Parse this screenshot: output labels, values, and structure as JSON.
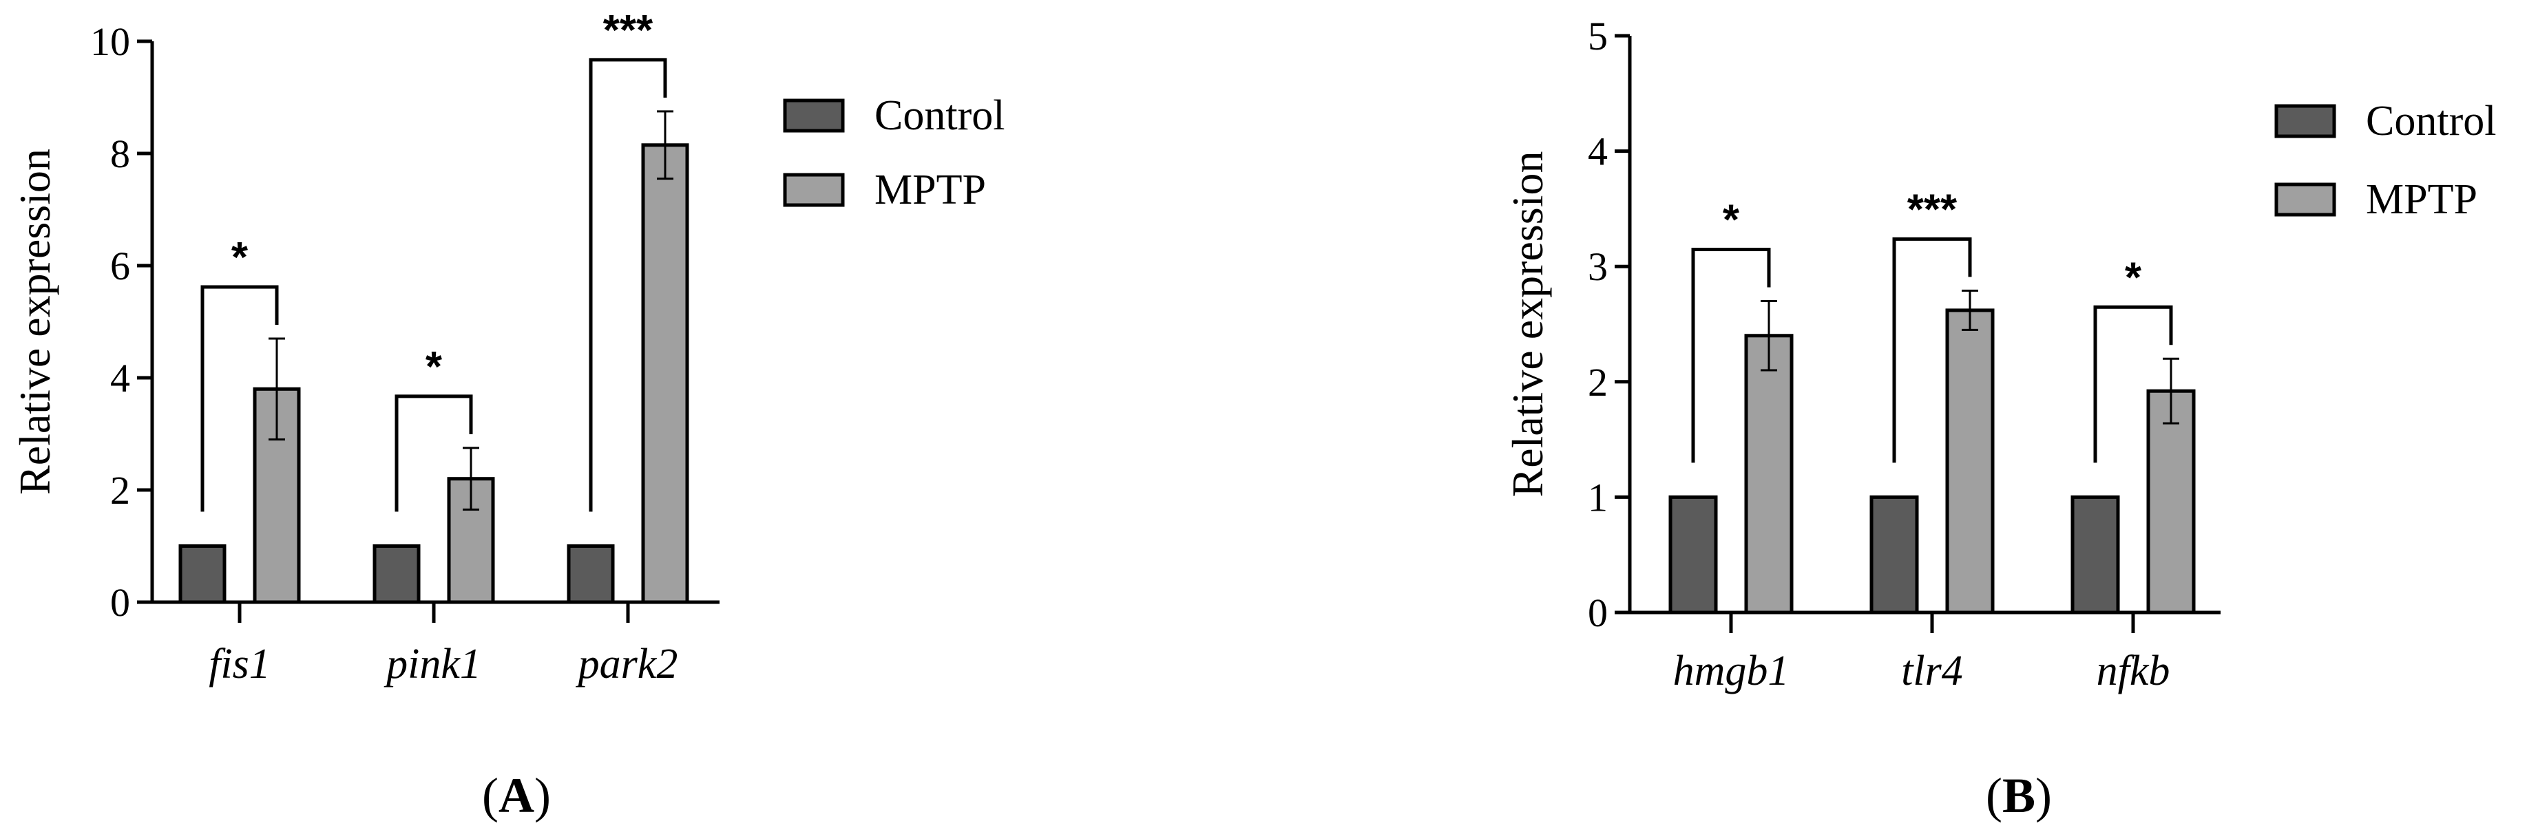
{
  "chart_data": [
    {
      "type": "bar",
      "panel_label": "A",
      "ylabel": "Relative expression",
      "ylim": [
        0,
        10
      ],
      "yticks": [
        0,
        2,
        4,
        6,
        8,
        10
      ],
      "categories": [
        "fis1",
        "pink1",
        "park2"
      ],
      "series": [
        {
          "name": "Control",
          "values": [
            1,
            1,
            1
          ],
          "errors": [
            0,
            0,
            0
          ],
          "color": "#5b5b5b"
        },
        {
          "name": "MPTP",
          "values": [
            3.8,
            2.2,
            8.15
          ],
          "errors": [
            0.9,
            0.55,
            0.6
          ],
          "color": "#a0a0a0"
        }
      ],
      "significance": [
        "*",
        "*",
        "***"
      ],
      "legend_position": "top-right"
    },
    {
      "type": "bar",
      "panel_label": "B",
      "ylabel": "Relative expression",
      "ylim": [
        0,
        5
      ],
      "yticks": [
        0,
        1,
        2,
        3,
        4,
        5
      ],
      "categories": [
        "hmgb1",
        "tlr4",
        "nfkb"
      ],
      "series": [
        {
          "name": "Control",
          "values": [
            1,
            1,
            1
          ],
          "errors": [
            0,
            0,
            0
          ],
          "color": "#5b5b5b"
        },
        {
          "name": "MPTP",
          "values": [
            2.4,
            2.62,
            1.92
          ],
          "errors": [
            0.3,
            0.17,
            0.28
          ],
          "color": "#a0a0a0"
        }
      ],
      "significance": [
        "*",
        "***",
        "*"
      ],
      "legend_position": "top-right"
    }
  ]
}
